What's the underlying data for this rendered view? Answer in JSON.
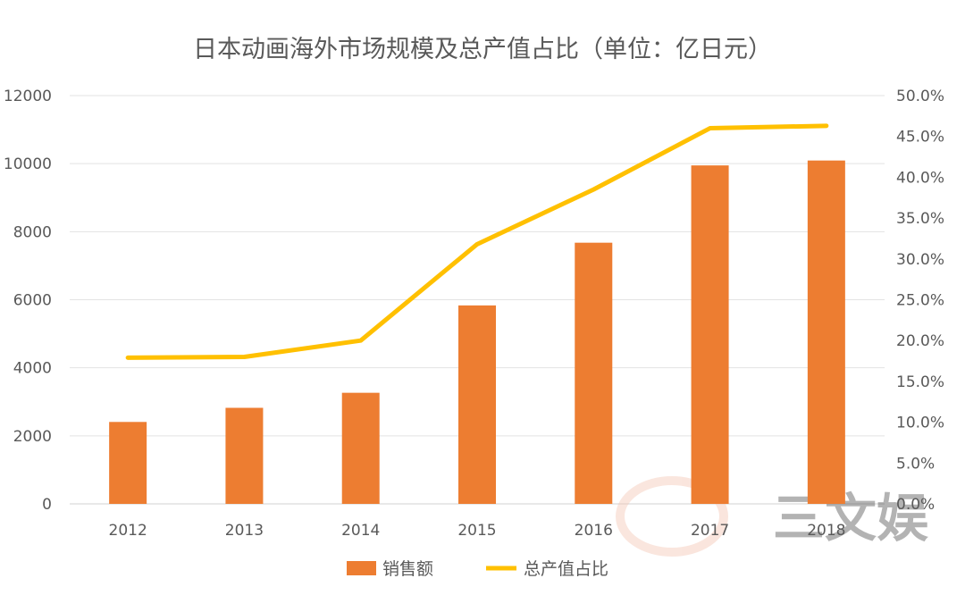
{
  "chart_data": {
    "type": "bar+line",
    "title": "日本动画海外市场规模及总产值占比（单位：亿日元）",
    "categories": [
      "2012",
      "2013",
      "2014",
      "2015",
      "2016",
      "2017",
      "2018"
    ],
    "series": [
      {
        "name": "销售额",
        "type": "bar",
        "axis": "left",
        "color": "#ED7D31",
        "values": [
          2408,
          2823,
          3265,
          5833,
          7676,
          9948,
          10092
        ]
      },
      {
        "name": "总产值占比",
        "type": "line",
        "axis": "right",
        "color": "#FFC000",
        "values": [
          0.179,
          0.18,
          0.2,
          0.318,
          0.385,
          0.46,
          0.463
        ]
      }
    ],
    "y_left": {
      "min": 0,
      "max": 12000,
      "ticks": [
        "0",
        "2000",
        "4000",
        "6000",
        "8000",
        "10000",
        "12000"
      ]
    },
    "y_right": {
      "min": 0,
      "max": 0.5,
      "ticks": [
        "0.0%",
        "5.0%",
        "10.0%",
        "15.0%",
        "20.0%",
        "25.0%",
        "30.0%",
        "35.0%",
        "40.0%",
        "45.0%",
        "50.0%"
      ]
    },
    "grid": true,
    "legend_position": "bottom"
  },
  "watermark": {
    "text": "三文娱",
    "color": "#F4C7B5"
  }
}
